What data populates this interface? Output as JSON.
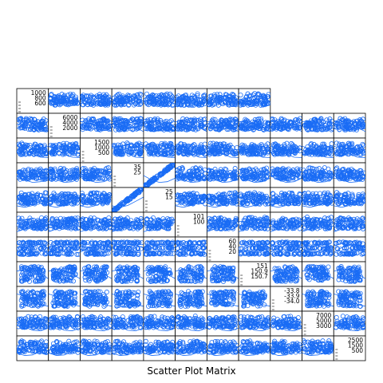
{
  "chart_data": {
    "type": "scatter",
    "title": "Scatter Plot Matrix",
    "grid": false,
    "point_color": "#1a6cf5",
    "frame_color": "#000000",
    "diagonal_panels": [
      {
        "label": "",
        "ticks": [
          "1000",
          "800",
          "600"
        ]
      },
      {
        "label": "",
        "ticks": [
          "6000",
          "4000",
          "2000"
        ]
      },
      {
        "label": "",
        "ticks": [
          "1500",
          "1000",
          "500"
        ]
      },
      {
        "label": "",
        "ticks": [
          "35",
          "25"
        ]
      },
      {
        "label": "",
        "ticks": [
          "25",
          "15"
        ]
      },
      {
        "label": "",
        "ticks": [
          "101",
          "100"
        ]
      },
      {
        "label": "",
        "ticks": [
          "60",
          "40",
          "20"
        ]
      },
      {
        "label": "",
        "ticks": [
          "151",
          "150.9",
          "150.7"
        ]
      },
      {
        "label": "",
        "ticks": [
          "-33.8",
          "-33.9",
          "-34.0"
        ]
      },
      {
        "label": "",
        "ticks": [
          "7000",
          "5000",
          "3000"
        ]
      },
      {
        "label": "",
        "ticks": [
          "2500",
          "1500",
          "500"
        ]
      }
    ],
    "panel_styles": [
      "cloud",
      "cloud",
      "cloud",
      "cloud",
      "cloud",
      "cloud",
      "cloud",
      "cloud",
      "cloud",
      "cloud",
      "cloud",
      "cloud",
      "cloud",
      "cloud",
      "cloud",
      "cloud",
      "cloud",
      "cloud",
      "cloud",
      "cloud",
      "cloud",
      "cloud",
      "cloud",
      "cloud",
      "cloud",
      "cloud",
      "cloud",
      "cloud",
      "cloud",
      "cloud",
      "cloud",
      "cloud",
      "cloud",
      "cloud",
      "cloud",
      "cloud",
      "cloud",
      "diag-line",
      "cloud",
      "cloud",
      "cloud",
      "cloud",
      "cloud",
      "cloud",
      "cloud",
      "cloud",
      "cloud",
      "diag-line",
      "cloud",
      "cloud",
      "cloud",
      "cloud",
      "cloud",
      "cloud",
      "cloud",
      "cloud",
      "cloud",
      "cloud",
      "cloud",
      "cloud",
      "cloud",
      "cloud",
      "cloud",
      "cloud",
      "cloud",
      "cloud",
      "bands",
      "bands",
      "bands",
      "bands",
      "bands",
      "bands",
      "bands",
      "bands",
      "bands",
      "bands",
      "bands",
      "blocks",
      "blocks",
      "blocks",
      "blocks",
      "blocks",
      "blocks",
      "blocks",
      "blocks",
      "blocks",
      "blocks",
      "blocks",
      "blocks",
      "blocks",
      "blocks",
      "blocks",
      "blocks",
      "blocks",
      "blocks",
      "blocks",
      "blocks",
      "blocks",
      "blocks",
      "cloud",
      "cloud",
      "cloud",
      "cloud",
      "cloud",
      "cloud",
      "cloud",
      "cloud",
      "cloud",
      "cloud",
      "cloud",
      "cloud",
      "cloud",
      "cloud",
      "cloud",
      "cloud",
      "cloud",
      "cloud",
      "cloud",
      "cloud",
      "cloud",
      "cloud"
    ],
    "n_points_per_panel": 90
  }
}
